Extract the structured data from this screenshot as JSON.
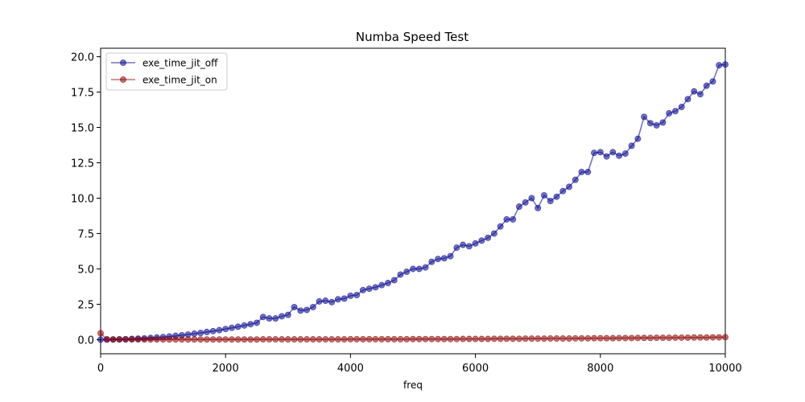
{
  "chart_data": {
    "type": "line",
    "title": "Numba Speed Test",
    "xlabel": "freq",
    "ylabel": "",
    "xlim": [
      0,
      10000
    ],
    "ylim": [
      -1.0,
      20.6
    ],
    "xticks": [
      0,
      2000,
      4000,
      6000,
      8000,
      10000
    ],
    "xtick_labels": [
      "0",
      "2000",
      "4000",
      "6000",
      "8000",
      "10000"
    ],
    "yticks": [
      0.0,
      2.5,
      5.0,
      7.5,
      10.0,
      12.5,
      15.0,
      17.5,
      20.0
    ],
    "ytick_labels": [
      "0.0",
      "2.5",
      "5.0",
      "7.5",
      "10.0",
      "12.5",
      "15.0",
      "17.5",
      "20.0"
    ],
    "grid": false,
    "legend_position": "top-left",
    "x": [
      0,
      100,
      200,
      300,
      400,
      500,
      600,
      700,
      800,
      900,
      1000,
      1100,
      1200,
      1300,
      1400,
      1500,
      1600,
      1700,
      1800,
      1900,
      2000,
      2100,
      2200,
      2300,
      2400,
      2500,
      2600,
      2700,
      2800,
      2900,
      3000,
      3100,
      3200,
      3300,
      3400,
      3500,
      3600,
      3700,
      3800,
      3900,
      4000,
      4100,
      4200,
      4300,
      4400,
      4500,
      4600,
      4700,
      4800,
      4900,
      5000,
      5100,
      5200,
      5300,
      5400,
      5500,
      5600,
      5700,
      5800,
      5900,
      6000,
      6100,
      6200,
      6300,
      6400,
      6500,
      6600,
      6700,
      6800,
      6900,
      7000,
      7100,
      7200,
      7300,
      7400,
      7500,
      7600,
      7700,
      7800,
      7900,
      8000,
      8100,
      8200,
      8300,
      8400,
      8500,
      8600,
      8700,
      8800,
      8900,
      9000,
      9100,
      9200,
      9300,
      9400,
      9500,
      9600,
      9700,
      9800,
      9900,
      10000
    ],
    "series": [
      {
        "name": "exe_time_jit_off",
        "color": "#00008b",
        "values": [
          0.0,
          0.0,
          0.01,
          0.02,
          0.03,
          0.05,
          0.07,
          0.09,
          0.12,
          0.15,
          0.18,
          0.22,
          0.27,
          0.31,
          0.36,
          0.42,
          0.47,
          0.54,
          0.6,
          0.67,
          0.75,
          0.83,
          0.91,
          1.0,
          1.09,
          1.19,
          1.6,
          1.5,
          1.5,
          1.65,
          1.75,
          2.3,
          2.05,
          2.1,
          2.3,
          2.7,
          2.75,
          2.65,
          2.85,
          2.9,
          3.1,
          3.15,
          3.5,
          3.6,
          3.7,
          3.85,
          4.0,
          4.2,
          4.6,
          4.8,
          5.0,
          5.0,
          5.1,
          5.5,
          5.7,
          5.75,
          5.9,
          6.5,
          6.7,
          6.6,
          6.8,
          7.0,
          7.2,
          7.5,
          8.0,
          8.5,
          8.5,
          9.4,
          9.7,
          10.0,
          9.3,
          10.2,
          9.8,
          10.1,
          10.5,
          10.8,
          11.3,
          11.85,
          11.85,
          13.2,
          13.25,
          12.95,
          13.25,
          13.0,
          13.15,
          13.7,
          14.2,
          15.75,
          15.3,
          15.15,
          15.35,
          16.0,
          16.15,
          16.45,
          17.0,
          17.55,
          17.35,
          17.95,
          18.25,
          19.4,
          19.45
        ]
      },
      {
        "name": "exe_time_jit_on",
        "color": "#8b0000",
        "values": [
          0.45,
          0.02,
          0.01,
          0.01,
          0.01,
          0.01,
          0.01,
          0.01,
          0.01,
          0.01,
          0.01,
          0.01,
          0.01,
          0.01,
          0.01,
          0.01,
          0.01,
          0.01,
          0.01,
          0.01,
          0.01,
          0.01,
          0.01,
          0.01,
          0.01,
          0.01,
          0.02,
          0.02,
          0.02,
          0.02,
          0.02,
          0.02,
          0.02,
          0.02,
          0.02,
          0.02,
          0.02,
          0.02,
          0.02,
          0.02,
          0.03,
          0.03,
          0.03,
          0.03,
          0.03,
          0.03,
          0.03,
          0.03,
          0.03,
          0.03,
          0.04,
          0.04,
          0.04,
          0.04,
          0.04,
          0.04,
          0.04,
          0.04,
          0.05,
          0.05,
          0.05,
          0.05,
          0.05,
          0.06,
          0.06,
          0.06,
          0.06,
          0.06,
          0.07,
          0.07,
          0.07,
          0.07,
          0.08,
          0.08,
          0.08,
          0.08,
          0.09,
          0.09,
          0.09,
          0.1,
          0.1,
          0.1,
          0.1,
          0.11,
          0.11,
          0.11,
          0.12,
          0.12,
          0.12,
          0.13,
          0.13,
          0.13,
          0.14,
          0.14,
          0.14,
          0.15,
          0.15,
          0.15,
          0.16,
          0.16,
          0.17
        ]
      }
    ]
  }
}
